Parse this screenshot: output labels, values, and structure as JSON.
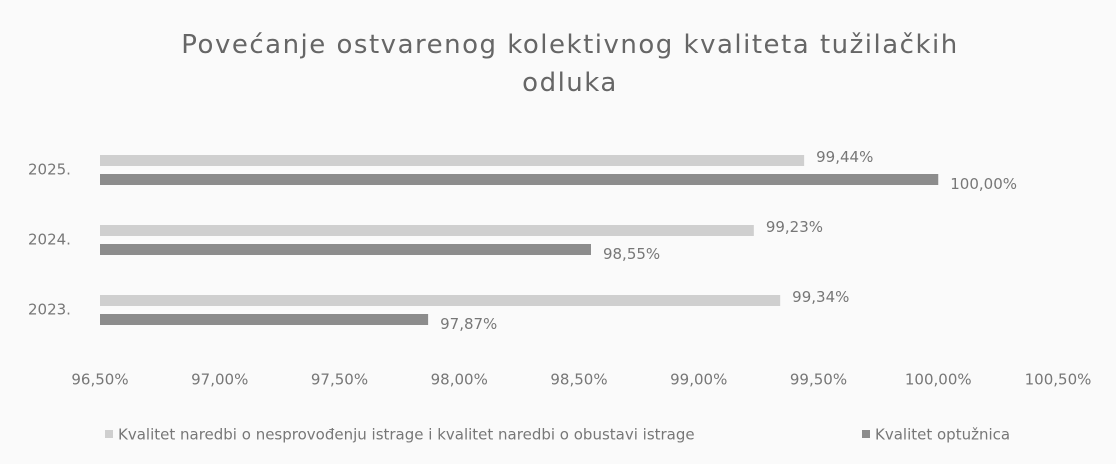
{
  "chart_data": {
    "type": "barh",
    "title": "Povećanje ostvarenog kolektivnog kvaliteta tužilačkih odluka",
    "categories": [
      "2025.",
      "2024.",
      "2023."
    ],
    "series": [
      {
        "name": "Kvalitet naredbi o nesprovođenju istrage i kvalitet naredbi o obustavi istrage",
        "color": "#cfcfcf",
        "values": [
          99.44,
          99.23,
          99.34
        ],
        "value_labels": [
          "99,44%",
          "99,23%",
          "99,34%"
        ]
      },
      {
        "name": "Kvalitet optužnica",
        "color": "#8c8c8c",
        "values": [
          100.0,
          98.55,
          97.87
        ],
        "value_labels": [
          "100,00%",
          "98,55%",
          "97,87%"
        ]
      }
    ],
    "xlim": [
      96.5,
      100.5
    ],
    "xticks": [
      {
        "value": 96.5,
        "label": "96,50%"
      },
      {
        "value": 97.0,
        "label": "97,00%"
      },
      {
        "value": 97.5,
        "label": "97,50%"
      },
      {
        "value": 98.0,
        "label": "98,00%"
      },
      {
        "value": 98.5,
        "label": "98,50%"
      },
      {
        "value": 99.0,
        "label": "99,00%"
      },
      {
        "value": 99.5,
        "label": "99,50%"
      },
      {
        "value": 100.0,
        "label": "100,00%"
      },
      {
        "value": 100.5,
        "label": "100,50%"
      }
    ],
    "legend": "bottom"
  }
}
